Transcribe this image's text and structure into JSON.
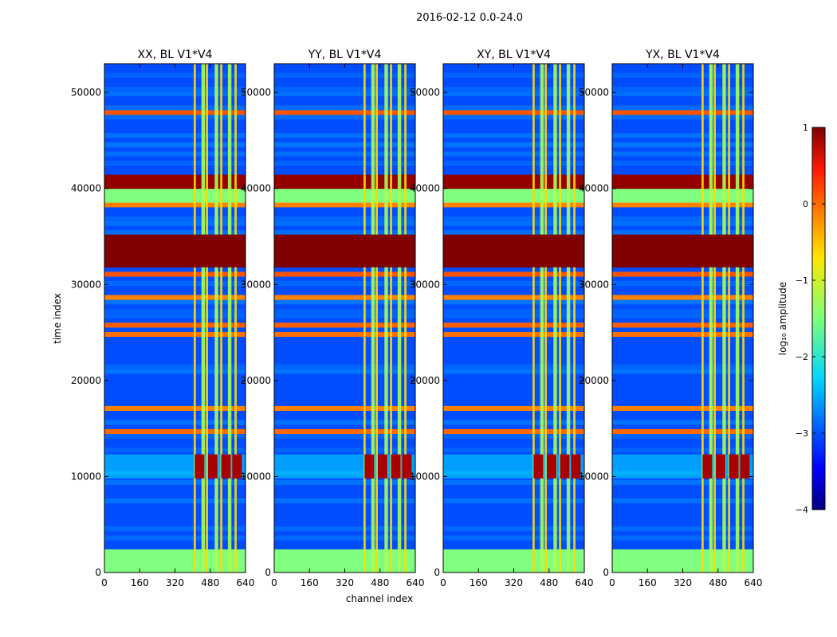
{
  "figure_title": "2016-02-12 0.0-24.0",
  "chart_data": {
    "type": "heatmap",
    "suptitle": "2016-02-12 0.0-24.0",
    "xlabel": "channel index",
    "ylabel": "time index",
    "xlim": [
      0,
      640
    ],
    "ylim": [
      0,
      53000
    ],
    "xticks": [
      0,
      160,
      320,
      480,
      640
    ],
    "yticks": [
      0,
      10000,
      20000,
      30000,
      40000,
      50000
    ],
    "panels": [
      {
        "title": "XX, BL V1*V4",
        "polarization": "XX"
      },
      {
        "title": "YY, BL V1*V4",
        "polarization": "YY"
      },
      {
        "title": "XY, BL V1*V4",
        "polarization": "XY"
      },
      {
        "title": "YX, BL V1*V4",
        "polarization": "YX"
      }
    ],
    "value_scale": "log10",
    "colormap": "jet",
    "colorbar": {
      "label": "log₁₀ amplitude",
      "range": [
        -4,
        1
      ],
      "ticks": [
        1,
        0,
        -1,
        -2,
        -3,
        -4
      ]
    },
    "features": {
      "rfi_channel_band": [
        405,
        600
      ],
      "saturated_time_band": [
        31800,
        35200
      ],
      "low_level_time_bands": [
        [
          0,
          2400
        ],
        [
          38600,
          40000
        ]
      ],
      "bright_burst_time": [
        9800,
        12300
      ]
    }
  }
}
